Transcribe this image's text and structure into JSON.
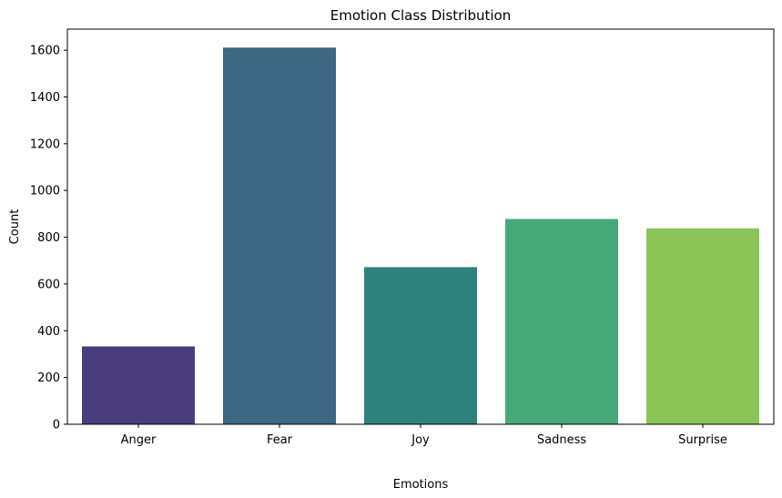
{
  "chart_data": {
    "type": "bar",
    "title": "Emotion Class Distribution",
    "xlabel": "Emotions",
    "ylabel": "Count",
    "categories": [
      "Anger",
      "Fear",
      "Joy",
      "Sadness",
      "Surprise"
    ],
    "values": [
      333,
      1611,
      672,
      878,
      838
    ],
    "colors": [
      "#4a3d7d",
      "#3d6783",
      "#2d837c",
      "#47a97a",
      "#8cc557"
    ],
    "ylim": [
      0,
      1690
    ],
    "yticks": [
      0,
      200,
      400,
      600,
      800,
      1000,
      1200,
      1400,
      1600
    ],
    "grid": false,
    "legend": "none"
  }
}
